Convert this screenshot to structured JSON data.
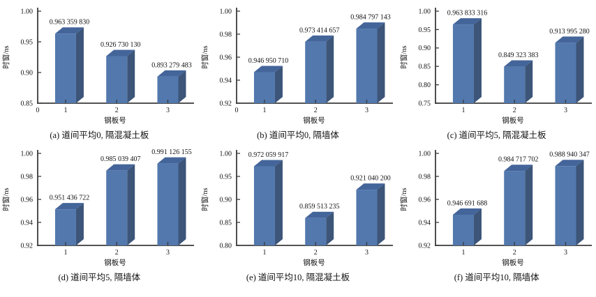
{
  "page": {
    "background": "#ffffff"
  },
  "colors": {
    "bar_front": "#5278ad",
    "bar_top": "#44659a",
    "bar_side": "#3c5579",
    "axis": "#3a3a3a",
    "text": "#111111"
  },
  "chart_data": [
    {
      "id": "a",
      "type": "bar",
      "caption": "(a) 道间平均0, 隔混凝土板",
      "xlabel": "钢板号",
      "ylabel": "时窗/ns",
      "categories": [
        "1",
        "2",
        "3"
      ],
      "values": [
        0.96335983,
        0.92673013,
        0.893279483
      ],
      "value_labels": [
        "0.963 359 830",
        "0.926 730 130",
        "0.893 279 483"
      ],
      "ylim": [
        0.85,
        1.0
      ],
      "yticks": [
        0.85,
        0.9,
        0.95,
        1.0
      ],
      "origin_label": "0",
      "grid": false,
      "legend": "none"
    },
    {
      "id": "b",
      "type": "bar",
      "caption": "(b) 道间平均0, 隔墙体",
      "xlabel": "钢板号",
      "ylabel": "时窗/ns",
      "categories": [
        "1",
        "2",
        "3"
      ],
      "values": [
        0.94695071,
        0.973414657,
        0.984797143
      ],
      "value_labels": [
        "0.946 950 710",
        "0.973 414 657",
        "0.984 797 143"
      ],
      "ylim": [
        0.92,
        1.0
      ],
      "yticks": [
        0.92,
        0.94,
        0.96,
        0.98,
        1.0
      ],
      "origin_label": "0",
      "grid": false,
      "legend": "none"
    },
    {
      "id": "c",
      "type": "bar",
      "caption": "(c) 道间平均5, 隔混凝土板",
      "xlabel": "钢板号",
      "ylabel": "时窗/ns",
      "categories": [
        "1",
        "2",
        "3"
      ],
      "values": [
        0.963833316,
        0.849323383,
        0.91399528
      ],
      "value_labels": [
        "0.963 833 316",
        "0.849 323 383",
        "0.913 995 280"
      ],
      "ylim": [
        0.75,
        1.0
      ],
      "yticks": [
        0.75,
        0.8,
        0.85,
        0.9,
        0.95,
        1.0
      ],
      "origin_label": "",
      "grid": false,
      "legend": "none"
    },
    {
      "id": "d",
      "type": "bar",
      "caption": "(d) 道间平均5, 隔墙体",
      "xlabel": "钢板号",
      "ylabel": "时窗/ns",
      "categories": [
        "1",
        "2",
        "3"
      ],
      "values": [
        0.951436722,
        0.985039407,
        0.991126155
      ],
      "value_labels": [
        "0.951 436 722",
        "0.985 039 407",
        "0.991 126 155"
      ],
      "ylim": [
        0.92,
        1.0
      ],
      "yticks": [
        0.92,
        0.94,
        0.96,
        0.98,
        1.0
      ],
      "origin_label": "",
      "grid": false,
      "legend": "none"
    },
    {
      "id": "e",
      "type": "bar",
      "caption": "(e) 道间平均10, 隔混凝土板",
      "xlabel": "钢板号",
      "ylabel": "时窗/ns",
      "categories": [
        "1",
        "2",
        "3"
      ],
      "values": [
        0.972059917,
        0.859513235,
        0.9210402
      ],
      "value_labels": [
        "0.972 059 917",
        "0.859 513 235",
        "0.921 040 200"
      ],
      "ylim": [
        0.8,
        1.0
      ],
      "yticks": [
        0.8,
        0.85,
        0.9,
        0.95,
        1.0
      ],
      "origin_label": "",
      "grid": false,
      "legend": "none"
    },
    {
      "id": "f",
      "type": "bar",
      "caption": "(f) 道间平均10, 隔墙体",
      "xlabel": "钢板号",
      "ylabel": "时窗/ns",
      "categories": [
        "1",
        "2",
        "3"
      ],
      "values": [
        0.946691688,
        0.984717702,
        0.988940347
      ],
      "value_labels": [
        "0.946 691 688",
        "0.984 717 702",
        "0.988 940 347"
      ],
      "ylim": [
        0.92,
        1.0
      ],
      "yticks": [
        0.92,
        0.94,
        0.96,
        0.98,
        1.0
      ],
      "origin_label": "",
      "grid": false,
      "legend": "none"
    }
  ]
}
